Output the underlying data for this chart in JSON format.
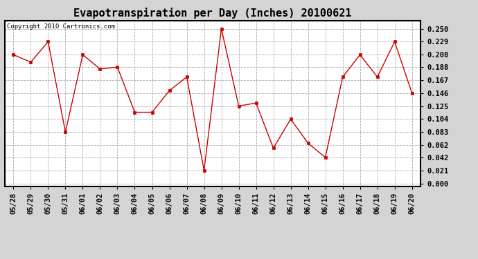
{
  "title": "Evapotranspiration per Day (Inches) 20100621",
  "copyright": "Copyright 2010 Cartronics.com",
  "x_labels": [
    "05/28",
    "05/29",
    "05/30",
    "05/31",
    "06/01",
    "06/02",
    "06/03",
    "06/04",
    "06/05",
    "06/06",
    "06/07",
    "06/08",
    "06/09",
    "06/10",
    "06/11",
    "06/12",
    "06/13",
    "06/14",
    "06/15",
    "06/16",
    "06/17",
    "06/18",
    "06/19",
    "06/20"
  ],
  "y_values": [
    0.208,
    0.196,
    0.229,
    0.083,
    0.208,
    0.185,
    0.188,
    0.115,
    0.115,
    0.15,
    0.172,
    0.021,
    0.25,
    0.125,
    0.13,
    0.057,
    0.104,
    0.065,
    0.042,
    0.172,
    0.208,
    0.172,
    0.229,
    0.146
  ],
  "y_ticks": [
    0.0,
    0.021,
    0.042,
    0.062,
    0.083,
    0.104,
    0.125,
    0.146,
    0.167,
    0.188,
    0.208,
    0.229,
    0.25
  ],
  "line_color": "#cc0000",
  "marker": "s",
  "marker_size": 3,
  "bg_color": "#d4d4d4",
  "plot_bg_color": "#ffffff",
  "grid_color": "#aaaaaa",
  "title_fontsize": 11,
  "copyright_fontsize": 6.5,
  "tick_fontsize": 7.5,
  "ylim": [
    -0.005,
    0.263
  ]
}
